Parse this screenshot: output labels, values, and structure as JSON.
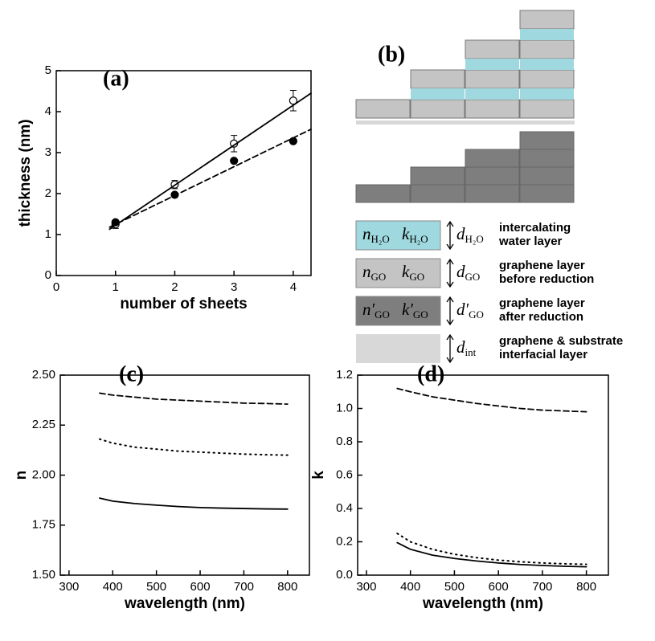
{
  "chart_data": [
    {
      "type": "scatter",
      "title": "(a)",
      "xlabel": "number of sheets",
      "ylabel": "thickness (nm)",
      "xlim": [
        0,
        4.3
      ],
      "xticks": [
        0,
        1,
        2,
        3,
        4
      ],
      "ylim": [
        0,
        5
      ],
      "yticks": [
        0,
        1,
        2,
        3,
        4,
        5
      ],
      "series": [
        {
          "mode": "markers",
          "marker": "open",
          "color": "#000000",
          "x": [
            1,
            2,
            3,
            4
          ],
          "values": [
            1.25,
            2.22,
            3.22,
            4.27
          ],
          "errors": [
            0.1,
            0.1,
            0.2,
            0.25
          ]
        },
        {
          "mode": "markers",
          "marker": "filled",
          "color": "#000000",
          "x": [
            1,
            2,
            3,
            4
          ],
          "values": [
            1.3,
            1.97,
            2.8,
            3.28
          ]
        },
        {
          "mode": "line",
          "dash": "solid",
          "color": "#000000",
          "x": [
            0.9,
            4.3
          ],
          "values": [
            1.13,
            4.45
          ]
        },
        {
          "mode": "line",
          "dash": "dashed",
          "color": "#000000",
          "x": [
            0.9,
            4.3
          ],
          "values": [
            1.18,
            3.57
          ]
        }
      ]
    },
    {
      "type": "line",
      "title": "(c)",
      "xlabel": "wavelength (nm)",
      "ylabel": "n",
      "xlim": [
        280,
        850
      ],
      "xticks": [
        300,
        400,
        500,
        600,
        700,
        800
      ],
      "ylim": [
        1.5,
        2.5
      ],
      "yticks": [
        {
          "value": 1.5,
          "label": "1.50"
        },
        {
          "value": 1.75,
          "label": "1.75"
        },
        {
          "value": 2.0,
          "label": "2.00"
        },
        {
          "value": 2.25,
          "label": "2.25"
        },
        {
          "value": 2.5,
          "label": "2.50"
        }
      ],
      "x": [
        370,
        400,
        450,
        500,
        550,
        600,
        650,
        700,
        750,
        800
      ],
      "series": [
        {
          "dash": "dashed",
          "color": "#000000",
          "values": [
            2.41,
            2.4,
            2.39,
            2.38,
            2.375,
            2.37,
            2.365,
            2.36,
            2.358,
            2.355
          ]
        },
        {
          "dash": "dotted",
          "color": "#000000",
          "values": [
            2.18,
            2.16,
            2.14,
            2.13,
            2.12,
            2.115,
            2.11,
            2.105,
            2.102,
            2.1
          ]
        },
        {
          "dash": "solid",
          "color": "#000000",
          "values": [
            1.885,
            1.87,
            1.858,
            1.85,
            1.843,
            1.838,
            1.835,
            1.833,
            1.831,
            1.83
          ]
        }
      ]
    },
    {
      "type": "line",
      "title": "(d)",
      "xlabel": "wavelength (nm)",
      "ylabel": "k",
      "xlim": [
        280,
        850
      ],
      "xticks": [
        300,
        400,
        500,
        600,
        700,
        800
      ],
      "ylim": [
        0,
        1.2
      ],
      "yticks": [
        {
          "value": 0,
          "label": "0.0"
        },
        0.2,
        0.4,
        0.6,
        0.8,
        {
          "value": 1,
          "label": "1.0"
        },
        1.2
      ],
      "x": [
        370,
        400,
        450,
        500,
        550,
        600,
        650,
        700,
        750,
        800
      ],
      "series": [
        {
          "dash": "dashed",
          "color": "#000000",
          "values": [
            1.12,
            1.1,
            1.07,
            1.05,
            1.03,
            1.015,
            1.0,
            0.99,
            0.985,
            0.98
          ]
        },
        {
          "dash": "dotted",
          "color": "#000000",
          "values": [
            0.25,
            0.2,
            0.155,
            0.125,
            0.105,
            0.09,
            0.08,
            0.073,
            0.068,
            0.065
          ]
        },
        {
          "dash": "solid",
          "color": "#000000",
          "values": [
            0.195,
            0.155,
            0.12,
            0.1,
            0.085,
            0.073,
            0.064,
            0.058,
            0.053,
            0.05
          ]
        }
      ]
    }
  ],
  "diagram": {
    "title": "(b)",
    "legend": [
      {
        "n": "n",
        "n_sub": "H₂O",
        "k": "k",
        "k_sub": "H₂O",
        "d": "d",
        "d_sub": "H₂O",
        "label": [
          "intercalating",
          "water layer"
        ]
      },
      {
        "n": "n",
        "n_sub": "GO",
        "k": "k",
        "k_sub": "GO",
        "d": "d",
        "d_sub": "GO",
        "label": [
          "graphene layer",
          "before reduction"
        ]
      },
      {
        "n": "n′",
        "n_sub": "GO",
        "k": "k′",
        "k_sub": "GO",
        "d": "d′",
        "d_sub": "GO",
        "label": [
          "graphene layer",
          "after reduction"
        ]
      },
      {
        "d": "d",
        "d_sub": "int",
        "label": [
          "graphene & substrate",
          "interfacial layer"
        ]
      }
    ]
  }
}
